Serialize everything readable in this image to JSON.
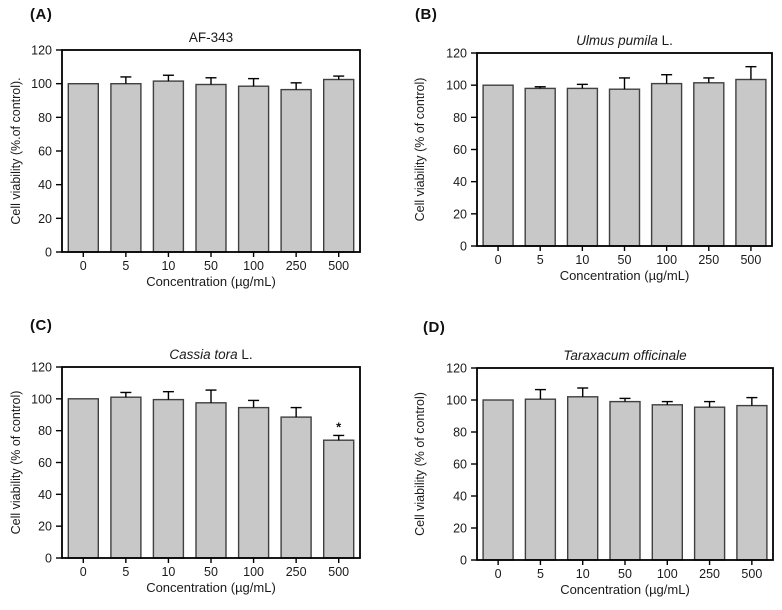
{
  "figure": {
    "background": "#ffffff",
    "bar_fill": "#c8c8c8",
    "bar_stroke": "#404040",
    "axis_color": "#000000",
    "text_color": "#1a1a1a"
  },
  "chart_data": [
    {
      "type": "bar",
      "panel_label": "(A)",
      "title": "AF-343",
      "title_parts": [
        {
          "text": "AF-343",
          "italic": false
        }
      ],
      "categories": [
        "0",
        "5",
        "10",
        "50",
        "100",
        "250",
        "500"
      ],
      "values": [
        100,
        100,
        101.5,
        99.5,
        98.5,
        96.5,
        102.5
      ],
      "errors": [
        0,
        4,
        3.5,
        4,
        4.5,
        4,
        2
      ],
      "xlabel": "Concentration (µg/mL)",
      "ylabel": "Cell viability (%.of control).",
      "ylim": [
        0,
        120
      ],
      "ytick_step": 20,
      "grid": false,
      "legend": "none",
      "annotations": []
    },
    {
      "type": "bar",
      "panel_label": "(B)",
      "title": "Ulmus pumila L.",
      "title_parts": [
        {
          "text": "Ulmus pumila",
          "italic": true
        },
        {
          "text": " L.",
          "italic": false
        }
      ],
      "categories": [
        "0",
        "5",
        "10",
        "50",
        "100",
        "250",
        "500"
      ],
      "values": [
        100,
        98,
        98,
        97.5,
        101,
        101.5,
        103.5
      ],
      "errors": [
        0,
        1,
        2.5,
        7,
        5.5,
        3,
        8
      ],
      "xlabel": "Concentration (µg/mL)",
      "ylabel": "Cell viability (% of control)",
      "ylim": [
        0,
        120
      ],
      "ytick_step": 20,
      "grid": false,
      "legend": "none",
      "annotations": []
    },
    {
      "type": "bar",
      "panel_label": "(C)",
      "title": "Cassia tora L.",
      "title_parts": [
        {
          "text": "Cassia tora",
          "italic": true
        },
        {
          "text": " L.",
          "italic": false
        }
      ],
      "categories": [
        "0",
        "5",
        "10",
        "50",
        "100",
        "250",
        "500"
      ],
      "values": [
        100,
        101,
        99.5,
        97.5,
        94.5,
        88.5,
        74
      ],
      "errors": [
        0,
        3,
        5,
        8,
        4.5,
        6,
        3
      ],
      "xlabel": "Concentration (µg/mL)",
      "ylabel": "Cell viability (% of control)",
      "ylim": [
        0,
        120
      ],
      "ytick_step": 20,
      "grid": false,
      "legend": "none",
      "annotations": [
        {
          "category_index": 6,
          "text": "*"
        }
      ]
    },
    {
      "type": "bar",
      "panel_label": "(D)",
      "title": "Taraxacum officinale",
      "title_parts": [
        {
          "text": "Taraxacum officinale",
          "italic": true
        }
      ],
      "categories": [
        "0",
        "5",
        "10",
        "50",
        "100",
        "250",
        "500"
      ],
      "values": [
        100,
        100.5,
        102,
        99,
        97,
        95.5,
        96.5
      ],
      "errors": [
        0,
        6,
        5.5,
        2,
        2,
        3.5,
        5
      ],
      "xlabel": "Concentration (µg/mL)",
      "ylabel": "Cell viability (% of control)",
      "ylim": [
        0,
        120
      ],
      "ytick_step": 20,
      "grid": false,
      "legend": "none",
      "annotations": []
    }
  ]
}
